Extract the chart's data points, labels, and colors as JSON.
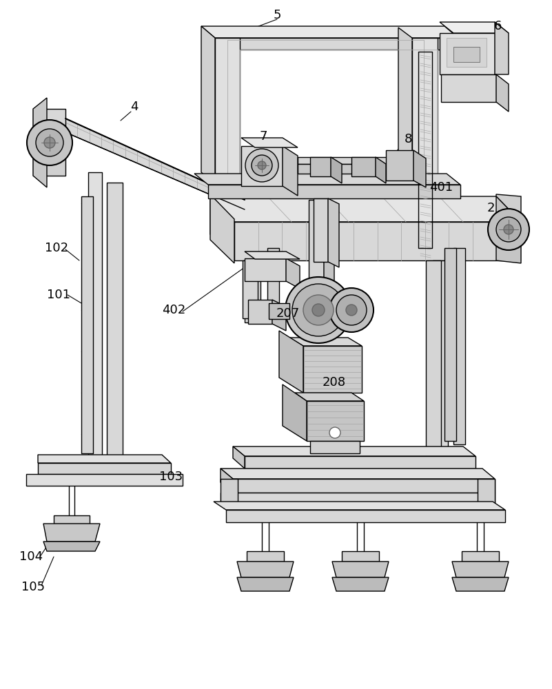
{
  "bg_color": "#ffffff",
  "lc": "#000000",
  "lg": "#e8e8e8",
  "lm": "#aaaaaa",
  "ld": "#666666",
  "figsize": [
    8.01,
    10.0
  ],
  "dpi": 100
}
